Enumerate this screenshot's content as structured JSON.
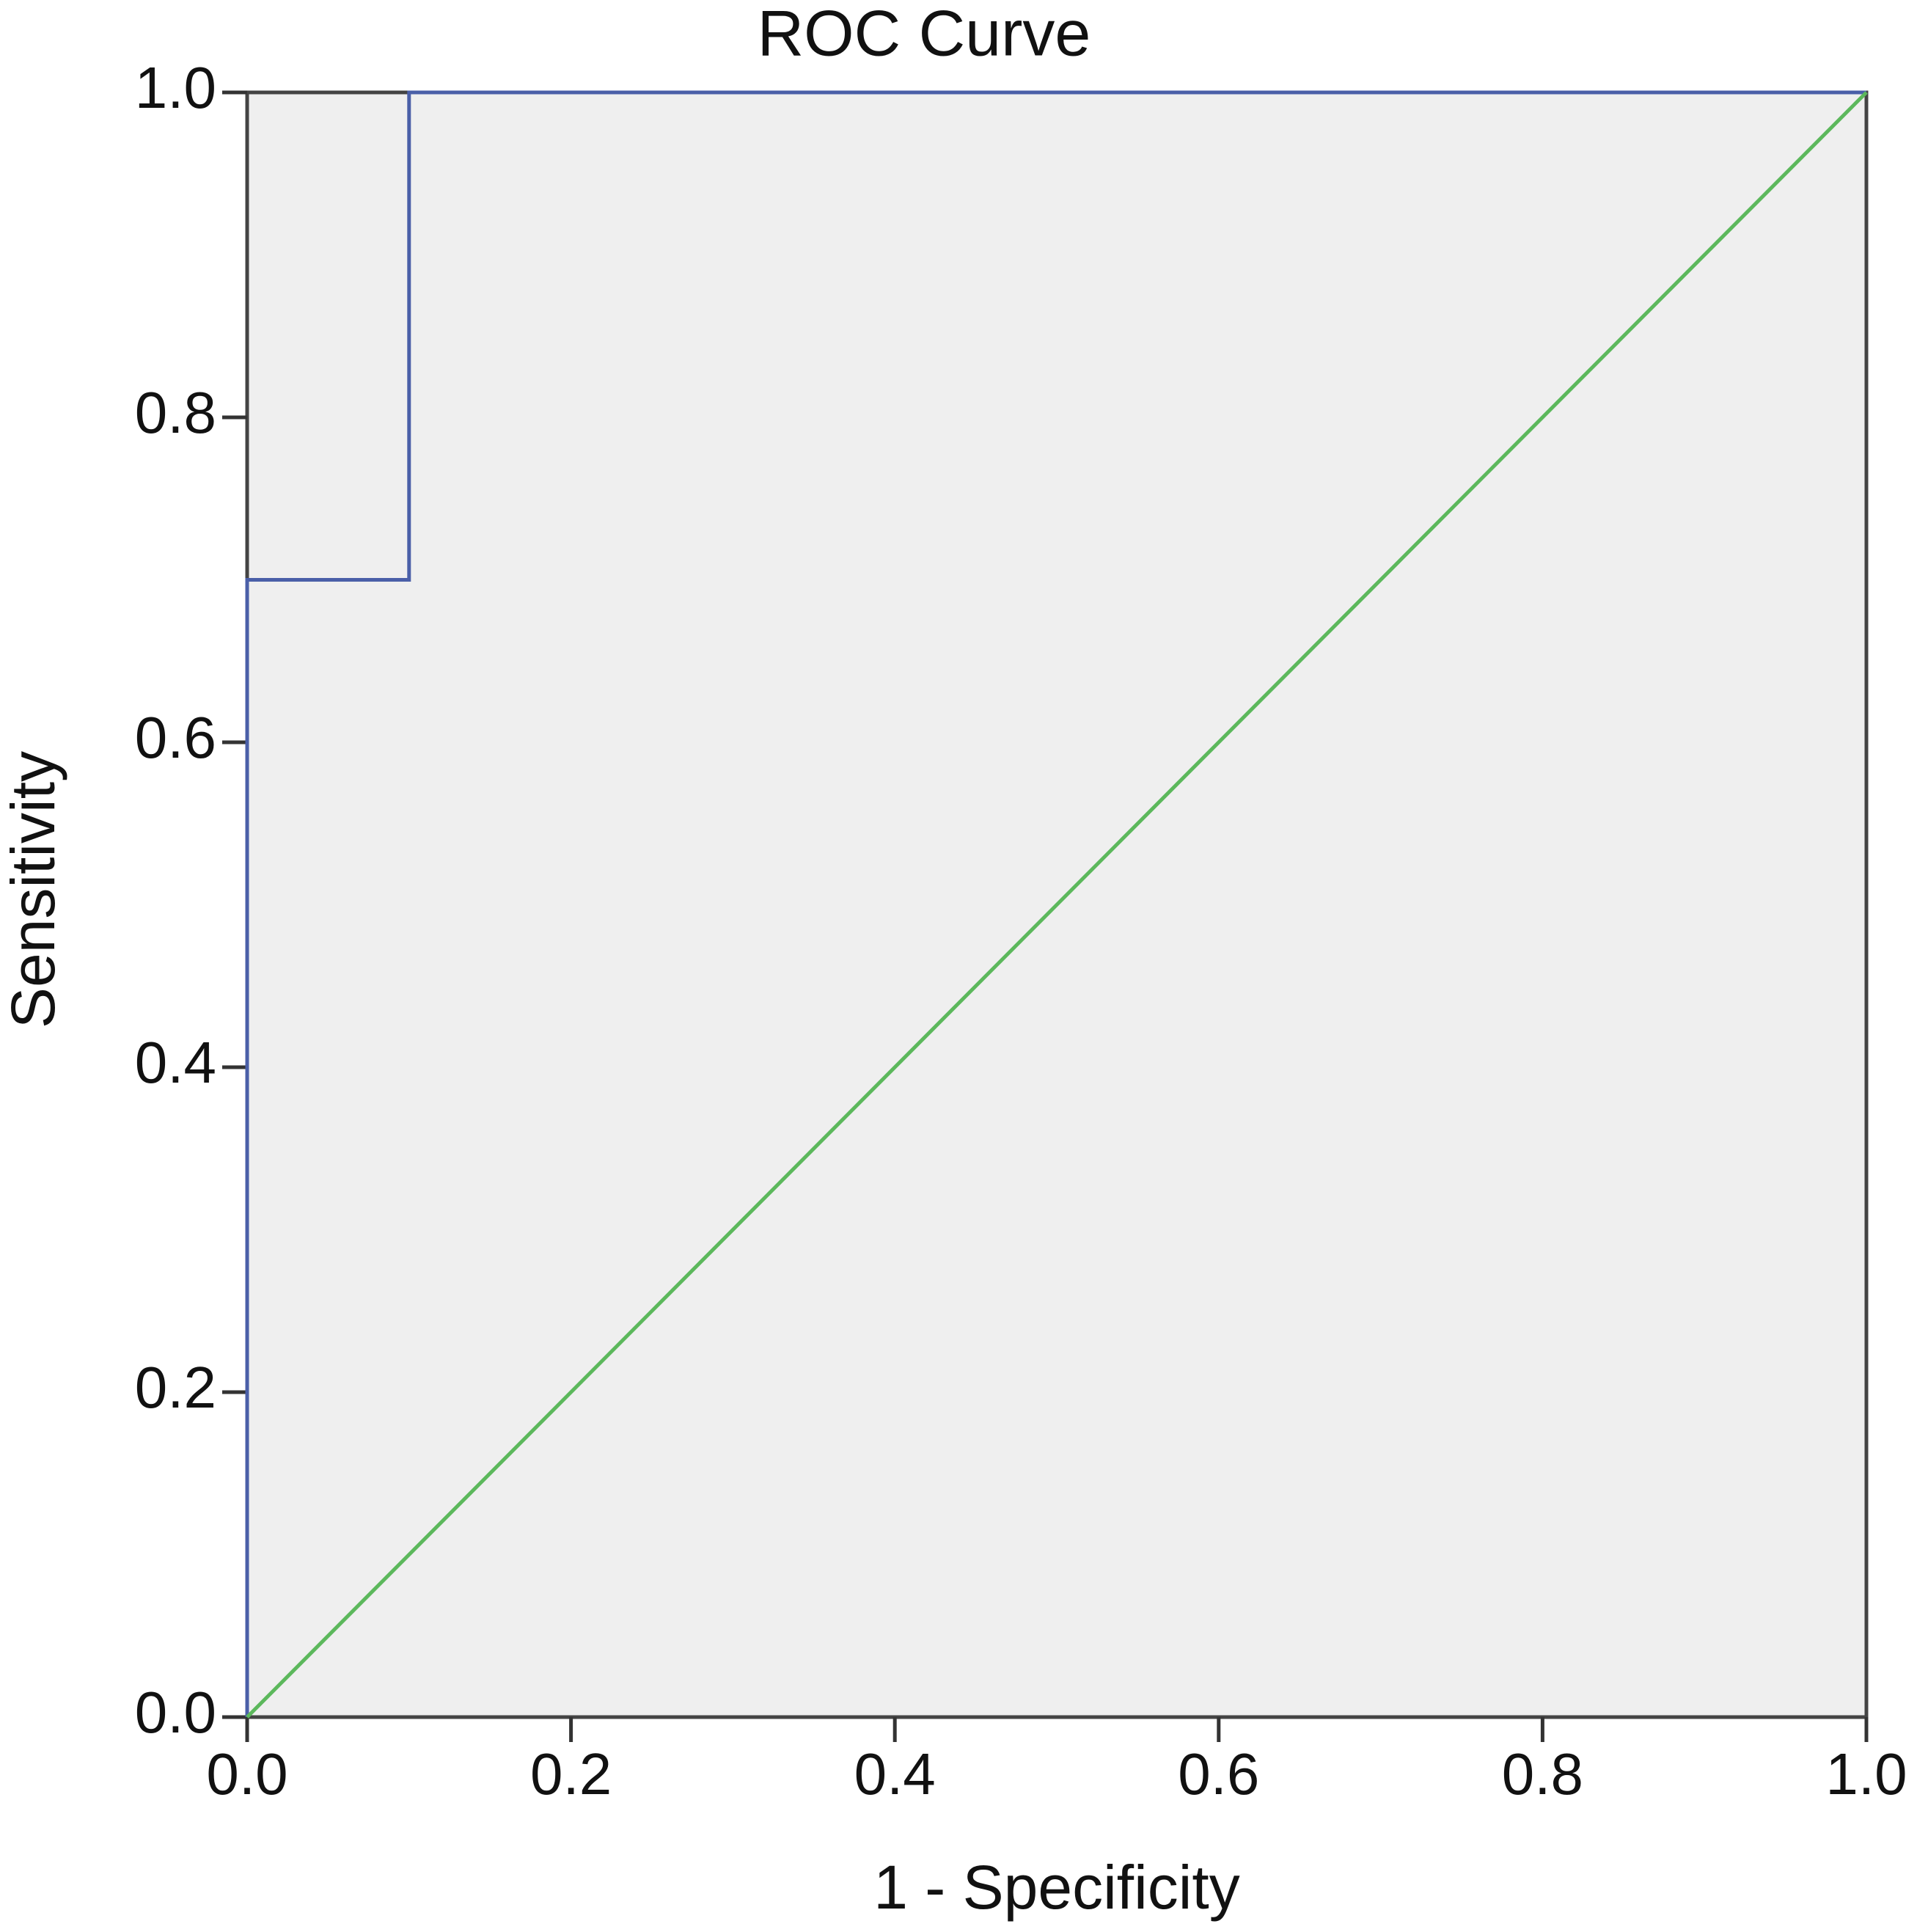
{
  "chart_data": {
    "type": "line",
    "title": "ROC Curve",
    "x_label": "1 - Specificity",
    "y_label": "Sensitivity",
    "series": [
      {
        "color": "#4a5fa8",
        "x": [
          0,
          0,
          0.1,
          0.1,
          1
        ],
        "values": [
          0,
          0.7,
          0.7,
          1,
          1
        ]
      },
      {
        "color": "#5cb85c",
        "x": [
          0,
          1
        ],
        "values": [
          0,
          1
        ]
      }
    ],
    "xlim": [
      0,
      1
    ],
    "ylim": [
      0,
      1
    ],
    "xticks": [
      {
        "value": 0,
        "label": "0.0"
      },
      0.2,
      0.4,
      0.6,
      0.8,
      {
        "value": 1,
        "label": "1.0"
      }
    ],
    "yticks": [
      {
        "value": 0,
        "label": "0.0"
      },
      0.2,
      0.4,
      0.6,
      0.8,
      {
        "value": 1,
        "label": "1.0"
      }
    ],
    "grid": false
  }
}
